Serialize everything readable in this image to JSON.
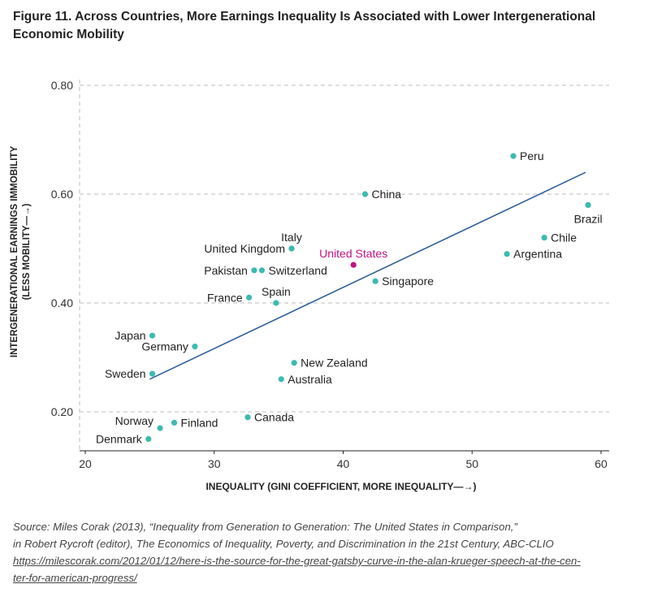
{
  "figure": {
    "title": "Figure 11. Across Countries, More Earnings Inequality Is Associated with Lower Intergenerational Economic Mobility",
    "source_line1": "Source: Miles Corak (2013), “Inequality from Generation to Generation: The United States in Comparison,”",
    "source_line2": "in Robert Rycroft (editor), The Economics of Inequality, Poverty, and Discrimination in the 21st Century, ABC-CLIO",
    "source_url_line1": "https://milescorak.com/2012/01/12/here-is-the-source-for-the-great-gatsby-curve-in-the-alan-krueger-speech-at-the-cen-",
    "source_url_line2": "ter-for-american-progress/"
  },
  "chart_data": {
    "type": "scatter",
    "xlabel": "INEQUALITY (GINI COEFFICIENT, MORE INEQUALITY—→)",
    "ylabel_line1": "INTERGENERATIONAL EARNINGS IMMOBILITY",
    "ylabel_line2": "(LESS MOBILITY—→)",
    "xlim": [
      20,
      60
    ],
    "ylim": [
      0.15,
      0.8
    ],
    "x_ticks": [
      20,
      30,
      40,
      50,
      60
    ],
    "y_ticks": [
      0.2,
      0.4,
      0.6,
      0.8
    ],
    "y_tick_labels": [
      "0.20",
      "0.40",
      "0.60",
      "0.80"
    ],
    "grid": "horizontal dashed",
    "point_color": "#3dbab0",
    "highlight_color": "#c2127f",
    "trend_color": "#2f5f9a",
    "points": [
      {
        "country": "Denmark",
        "x": 24.9,
        "y": 0.15,
        "label_pos": "left"
      },
      {
        "country": "Norway",
        "x": 25.8,
        "y": 0.17,
        "label_pos": "left-up"
      },
      {
        "country": "Finland",
        "x": 26.9,
        "y": 0.18,
        "label_pos": "right"
      },
      {
        "country": "Sweden",
        "x": 25.2,
        "y": 0.27,
        "label_pos": "left"
      },
      {
        "country": "Germany",
        "x": 28.5,
        "y": 0.32,
        "label_pos": "left"
      },
      {
        "country": "Japan",
        "x": 25.2,
        "y": 0.34,
        "label_pos": "left"
      },
      {
        "country": "Canada",
        "x": 32.6,
        "y": 0.19,
        "label_pos": "right"
      },
      {
        "country": "Australia",
        "x": 35.2,
        "y": 0.26,
        "label_pos": "right"
      },
      {
        "country": "New Zealand",
        "x": 36.2,
        "y": 0.29,
        "label_pos": "right"
      },
      {
        "country": "France",
        "x": 32.7,
        "y": 0.41,
        "label_pos": "left"
      },
      {
        "country": "Spain",
        "x": 34.8,
        "y": 0.4,
        "label_pos": "above"
      },
      {
        "country": "Pakistan",
        "x": 33.1,
        "y": 0.46,
        "label_pos": "left"
      },
      {
        "country": "Switzerland",
        "x": 33.7,
        "y": 0.46,
        "label_pos": "right"
      },
      {
        "country": "Italy",
        "x": 36.0,
        "y": 0.5,
        "label_pos": "above"
      },
      {
        "country": "United Kingdom",
        "x": 36.0,
        "y": 0.5,
        "label_pos": "left"
      },
      {
        "country": "United States",
        "x": 40.8,
        "y": 0.47,
        "label_pos": "above",
        "highlight": true
      },
      {
        "country": "Singapore",
        "x": 42.5,
        "y": 0.44,
        "label_pos": "right"
      },
      {
        "country": "China",
        "x": 41.7,
        "y": 0.6,
        "label_pos": "right"
      },
      {
        "country": "Argentina",
        "x": 52.7,
        "y": 0.49,
        "label_pos": "right"
      },
      {
        "country": "Chile",
        "x": 55.6,
        "y": 0.52,
        "label_pos": "right"
      },
      {
        "country": "Peru",
        "x": 53.2,
        "y": 0.67,
        "label_pos": "right"
      },
      {
        "country": "Brazil",
        "x": 59.0,
        "y": 0.58,
        "label_pos": "below"
      }
    ],
    "trend_line": {
      "x": [
        25.0,
        58.8
      ],
      "y": [
        0.26,
        0.64
      ]
    }
  }
}
